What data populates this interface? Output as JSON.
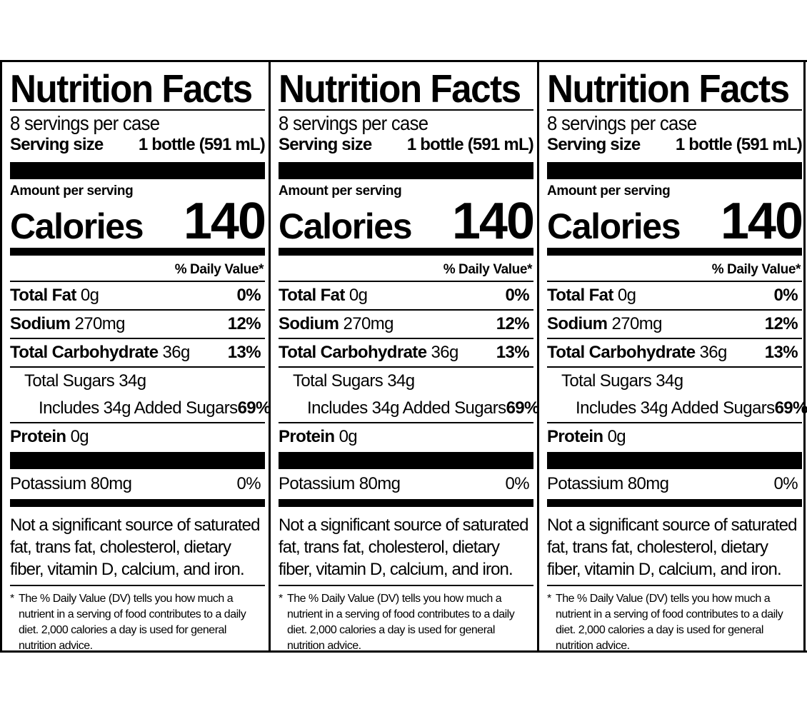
{
  "labels": [
    {
      "title": "Nutrition Facts",
      "servings_per_container": "8 servings per case",
      "serving_size_label": "Serving size",
      "serving_size_value": "1 bottle (591 mL)",
      "amount_per_serving": "Amount per serving",
      "calories_label": "Calories",
      "calories_value": "140",
      "daily_value_header": "% Daily Value*",
      "nutrients": [
        {
          "name": "Total Fat",
          "amount": "0g",
          "dv": "0%"
        },
        {
          "name": "Sodium",
          "amount": "270mg",
          "dv": "12%"
        },
        {
          "name": "Total Carbohydrate",
          "amount": "36g",
          "dv": "13%"
        }
      ],
      "total_sugars": "Total Sugars 34g",
      "added_sugars": "Includes 34g Added Sugars",
      "added_sugars_dv": "69%",
      "protein_name": "Protein",
      "protein_amount": "0g",
      "potassium": "Potassium 80mg",
      "potassium_dv": "0%",
      "not_significant": "Not a significant source of saturated fat, trans fat, cholesterol, dietary fiber, vitamin D, calcium, and iron.",
      "footnote_star": "*",
      "footnote": "The % Daily Value (DV) tells you how much a nutrient in a serving of food contributes to a daily diet. 2,000 calories a day is used for general nutrition advice."
    },
    {
      "title": "Nutrition Facts",
      "servings_per_container": "8 servings per case",
      "serving_size_label": "Serving size",
      "serving_size_value": "1 bottle (591 mL)",
      "amount_per_serving": "Amount per serving",
      "calories_label": "Calories",
      "calories_value": "140",
      "daily_value_header": "% Daily Value*",
      "nutrients": [
        {
          "name": "Total Fat",
          "amount": "0g",
          "dv": "0%"
        },
        {
          "name": "Sodium",
          "amount": "270mg",
          "dv": "12%"
        },
        {
          "name": "Total Carbohydrate",
          "amount": "36g",
          "dv": "13%"
        }
      ],
      "total_sugars": "Total Sugars 34g",
      "added_sugars": "Includes 34g Added Sugars",
      "added_sugars_dv": "69%",
      "protein_name": "Protein",
      "protein_amount": "0g",
      "potassium": "Potassium 80mg",
      "potassium_dv": "0%",
      "not_significant": "Not a significant source of saturated fat, trans fat, cholesterol, dietary fiber, vitamin D, calcium, and iron.",
      "footnote_star": "*",
      "footnote": "The % Daily Value (DV) tells you how much a nutrient in a serving of food contributes to a daily diet. 2,000 calories a day is used for general nutrition advice."
    },
    {
      "title": "Nutrition Facts",
      "servings_per_container": "8 servings per case",
      "serving_size_label": "Serving size",
      "serving_size_value": "1 bottle (591 mL)",
      "amount_per_serving": "Amount per serving",
      "calories_label": "Calories",
      "calories_value": "140",
      "daily_value_header": "% Daily Value*",
      "nutrients": [
        {
          "name": "Total Fat",
          "amount": "0g",
          "dv": "0%"
        },
        {
          "name": "Sodium",
          "amount": "270mg",
          "dv": "12%"
        },
        {
          "name": "Total Carbohydrate",
          "amount": "36g",
          "dv": "13%"
        }
      ],
      "total_sugars": "Total Sugars 34g",
      "added_sugars": "Includes 34g Added Sugars",
      "added_sugars_dv": "69%",
      "protein_name": "Protein",
      "protein_amount": "0g",
      "potassium": "Potassium 80mg",
      "potassium_dv": "0%",
      "not_significant": "Not a significant source of saturated fat, trans fat, cholesterol, dietary fiber, vitamin D, calcium, and iron.",
      "footnote_star": "*",
      "footnote": "The % Daily Value (DV) tells you how much a nutrient in a serving of food contributes to a daily diet. 2,000 calories a day is used for general nutrition advice."
    }
  ]
}
